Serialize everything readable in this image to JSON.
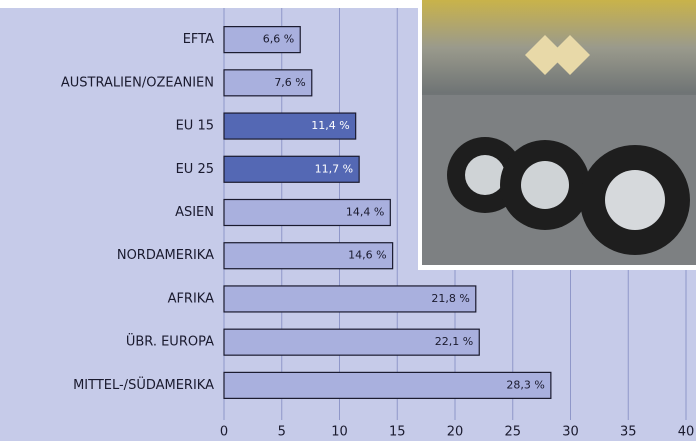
{
  "chart_data": {
    "type": "bar",
    "orientation": "horizontal",
    "categories": [
      "EFTA",
      "AUSTRALIEN/OZEANIEN",
      "EU 15",
      "EU 25",
      "ASIEN",
      "NORDAMERIKA",
      "AFRIKA",
      "ÜBR. EUROPA",
      "MITTEL-/SÜDAMERIKA"
    ],
    "values": [
      6.6,
      7.6,
      11.4,
      11.7,
      14.4,
      14.6,
      21.8,
      22.1,
      28.3
    ],
    "value_labels": [
      "6,6 %",
      "7,6 %",
      "11,4 %",
      "11,7 %",
      "14,4 %",
      "14,6 %",
      "21,8 %",
      "22,1 %",
      "28,3 %"
    ],
    "colors": [
      "#a9b0de",
      "#a9b0de",
      "#5468b4",
      "#5468b4",
      "#a9b0de",
      "#a9b0de",
      "#a9b0de",
      "#a9b0de",
      "#a9b0de"
    ],
    "xlim": [
      0,
      40
    ],
    "xticks": [
      0,
      5,
      10,
      15,
      20,
      25,
      30,
      35,
      40
    ],
    "grid": true
  }
}
